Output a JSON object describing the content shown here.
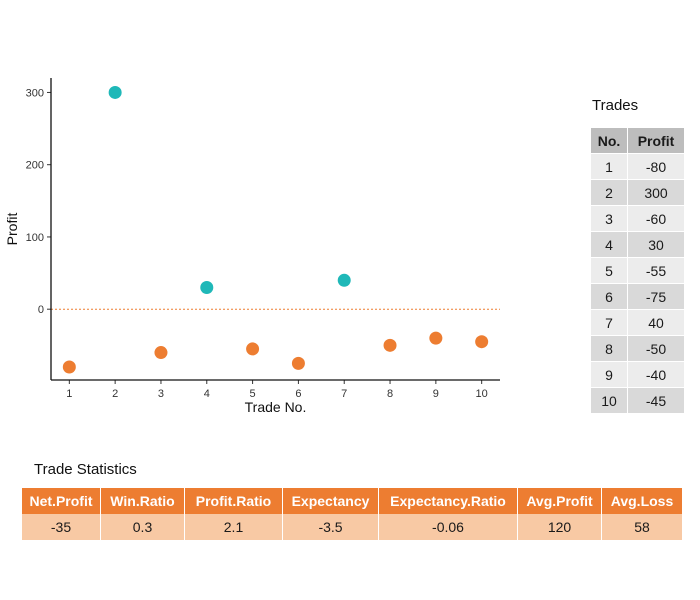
{
  "chart_data": {
    "type": "scatter",
    "xlabel": "Trade No.",
    "ylabel": "Profit",
    "x": [
      1,
      2,
      3,
      4,
      5,
      6,
      7,
      8,
      9,
      10
    ],
    "y": [
      -80,
      300,
      -60,
      30,
      -55,
      -75,
      40,
      -50,
      -40,
      -45
    ],
    "xlim": [
      0.6,
      10.4
    ],
    "ylim": [
      -98,
      320
    ],
    "xticks": [
      "1",
      "2",
      "3",
      "4",
      "5",
      "6",
      "7",
      "8",
      "9",
      "10"
    ],
    "yticks": [
      0,
      100,
      200,
      300
    ],
    "reference_line": 0,
    "grid": false,
    "colors": {
      "positive": "#1fb8b8",
      "negative": "#ed7d31",
      "zero_line": "#ed7d31"
    }
  },
  "trades": {
    "title": "Trades",
    "headers": [
      "No.",
      "Profit"
    ],
    "rows": [
      [
        "1",
        "-80"
      ],
      [
        "2",
        "300"
      ],
      [
        "3",
        "-60"
      ],
      [
        "4",
        "30"
      ],
      [
        "5",
        "-55"
      ],
      [
        "6",
        "-75"
      ],
      [
        "7",
        "40"
      ],
      [
        "8",
        "-50"
      ],
      [
        "9",
        "-40"
      ],
      [
        "10",
        "-45"
      ]
    ]
  },
  "stats": {
    "title": "Trade Statistics",
    "headers": [
      "Net.Profit",
      "Win.Ratio",
      "Profit.Ratio",
      "Expectancy",
      "Expectancy.Ratio",
      "Avg.Profit",
      "Avg.Loss"
    ],
    "values": [
      "-35",
      "0.3",
      "2.1",
      "-3.5",
      "-0.06",
      "120",
      "58"
    ]
  }
}
